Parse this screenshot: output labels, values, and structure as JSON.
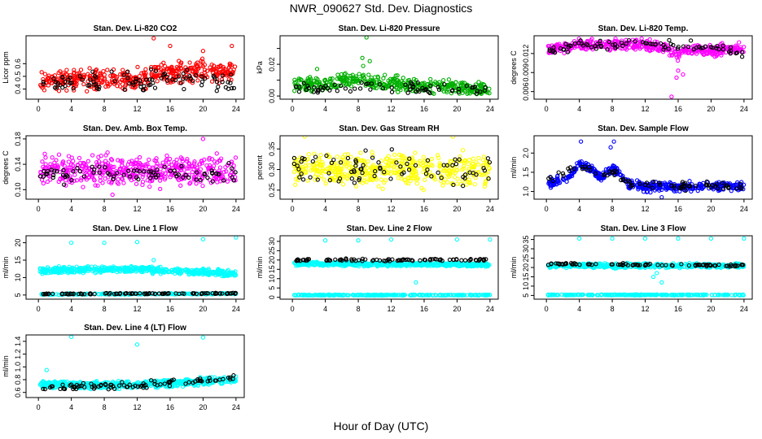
{
  "title": "NWR_090627  Std. Dev. Diagnostics",
  "xlabel": "Hour of Day (UTC)",
  "chart_data": [
    {
      "type": "scatter",
      "title": "Stan. Dev. Li-820 CO2",
      "ylabel": "Licor ppm",
      "xlim": [
        -1.5,
        25
      ],
      "ylim": [
        0.32,
        0.82
      ],
      "xticks": [
        0,
        4,
        8,
        12,
        16,
        20,
        24
      ],
      "yticks": [
        0.4,
        0.5,
        0.6
      ],
      "ytick_labels": [
        "0.4",
        "0.5",
        "0.6"
      ],
      "series": [
        {
          "color": "#ff0000",
          "n": 420,
          "xr": [
            0.2,
            24
          ],
          "base": [
            [
              0,
              0.47
            ],
            [
              12,
              0.48
            ],
            [
              14,
              0.52
            ],
            [
              20,
              0.55
            ],
            [
              24,
              0.52
            ]
          ],
          "spread": 0.07,
          "outliers": [
            [
              14,
              0.8
            ],
            [
              16,
              0.74
            ],
            [
              23.5,
              0.74
            ],
            [
              20,
              0.7
            ]
          ]
        },
        {
          "color": "#000000",
          "n": 95,
          "xr": [
            0.2,
            24
          ],
          "base": [
            [
              0,
              0.44
            ],
            [
              12,
              0.46
            ],
            [
              20,
              0.49
            ],
            [
              24,
              0.44
            ]
          ],
          "spread": 0.07
        }
      ]
    },
    {
      "type": "scatter",
      "title": "Stan. Dev. Li-820 Pressure",
      "ylabel": "kPa",
      "xlim": [
        -1.5,
        25
      ],
      "ylim": [
        -0.002,
        0.038
      ],
      "xticks": [
        0,
        4,
        8,
        12,
        16,
        20,
        24
      ],
      "yticks": [
        0.0,
        0.01,
        0.02,
        0.03
      ],
      "ytick_labels": [
        "0.00",
        "",
        "0.02",
        ""
      ],
      "series": [
        {
          "color": "#00b000",
          "n": 420,
          "xr": [
            0.2,
            24
          ],
          "base": [
            [
              0,
              0.007
            ],
            [
              4,
              0.007
            ],
            [
              8,
              0.011
            ],
            [
              10,
              0.008
            ],
            [
              24,
              0.004
            ]
          ],
          "spread": 0.004,
          "outliers": [
            [
              9,
              0.037
            ],
            [
              8.5,
              0.024
            ],
            [
              9.4,
              0.022
            ],
            [
              8.6,
              0.019
            ],
            [
              3,
              0.017
            ]
          ]
        },
        {
          "color": "#000000",
          "n": 70,
          "xr": [
            0.2,
            24
          ],
          "base": [
            [
              0,
              0.006
            ],
            [
              24,
              0.004
            ]
          ],
          "spread": 0.003
        }
      ]
    },
    {
      "type": "scatter",
      "title": "Stan. Dev. Li-820 Temp.",
      "ylabel": "degrees C",
      "xlim": [
        -1.5,
        25
      ],
      "ylim": [
        0.0048,
        0.0148
      ],
      "xticks": [
        0,
        4,
        8,
        12,
        16,
        20,
        24
      ],
      "yticks": [
        0.006,
        0.009,
        0.012
      ],
      "ytick_labels": [
        "0.006",
        "0.009",
        "0.012"
      ],
      "series": [
        {
          "color": "#ff00ff",
          "n": 460,
          "xr": [
            0.2,
            24
          ],
          "base": [
            [
              0,
              0.0126
            ],
            [
              4,
              0.0134
            ],
            [
              12,
              0.0133
            ],
            [
              14,
              0.0131
            ],
            [
              16,
              0.0116
            ],
            [
              17,
              0.0126
            ],
            [
              24,
              0.0127
            ]
          ],
          "spread": 0.0008,
          "outliers": [
            [
              15.2,
              0.0052
            ],
            [
              15.8,
              0.0082
            ],
            [
              16,
              0.0093
            ],
            [
              16.6,
              0.0087
            ]
          ]
        },
        {
          "color": "#000000",
          "n": 80,
          "xr": [
            0.2,
            24
          ],
          "base": [
            [
              0,
              0.0123
            ],
            [
              4,
              0.0133
            ],
            [
              12,
              0.0134
            ],
            [
              20,
              0.0132
            ],
            [
              24,
              0.012
            ]
          ],
          "spread": 0.0006
        }
      ]
    },
    {
      "type": "scatter",
      "title": "Stan. Dev. Amb. Box Temp.",
      "ylabel": "degrees C",
      "xlim": [
        -1.5,
        25
      ],
      "ylim": [
        0.085,
        0.185
      ],
      "xticks": [
        0,
        4,
        8,
        12,
        16,
        20,
        24
      ],
      "yticks": [
        0.1,
        0.14,
        0.18
      ],
      "ytick_labels": [
        "0.10",
        "0.14",
        "0.18"
      ],
      "series": [
        {
          "color": "#ff00ff",
          "n": 460,
          "xr": [
            0.2,
            24
          ],
          "base": [
            [
              0,
              0.13
            ],
            [
              24,
              0.13
            ]
          ],
          "spread": 0.02,
          "outliers": [
            [
              20,
              0.18
            ],
            [
              9,
              0.092
            ]
          ]
        },
        {
          "color": "#000000",
          "n": 80,
          "xr": [
            0.2,
            24
          ],
          "base": [
            [
              0,
              0.125
            ],
            [
              24,
              0.125
            ]
          ],
          "spread": 0.013
        }
      ]
    },
    {
      "type": "scatter",
      "title": "Stan. Dev. Gas Stream RH",
      "ylabel": "percent",
      "xlim": [
        -1.5,
        25
      ],
      "ylim": [
        0.228,
        0.382
      ],
      "xticks": [
        0,
        4,
        8,
        12,
        16,
        20,
        24
      ],
      "yticks": [
        0.25,
        0.3,
        0.35
      ],
      "ytick_labels": [
        "0.25",
        "0.30",
        "0.35"
      ],
      "series": [
        {
          "color": "#ffff00",
          "n": 460,
          "xr": [
            0.2,
            24
          ],
          "base": [
            [
              0,
              0.3
            ],
            [
              24,
              0.3
            ]
          ],
          "spread": 0.035,
          "outliers": [
            [
              1.5,
              0.38
            ],
            [
              19.5,
              0.38
            ]
          ]
        },
        {
          "color": "#000000",
          "n": 80,
          "xr": [
            0.2,
            24
          ],
          "base": [
            [
              0,
              0.3
            ],
            [
              24,
              0.3
            ]
          ],
          "spread": 0.035
        }
      ]
    },
    {
      "type": "scatter",
      "title": "Stan. Dev. Sample Flow",
      "ylabel": "ml/min",
      "xlim": [
        -1.5,
        25
      ],
      "ylim": [
        0.8,
        2.45
      ],
      "xticks": [
        0,
        4,
        8,
        12,
        16,
        20,
        24
      ],
      "yticks": [
        1.0,
        1.5,
        2.0
      ],
      "ytick_labels": [
        "1.0",
        "1.5",
        "2.0"
      ],
      "series": [
        {
          "color": "#0000ff",
          "n": 460,
          "xr": [
            0.2,
            24
          ],
          "base": [
            [
              0,
              1.22
            ],
            [
              2.5,
              1.3
            ],
            [
              4,
              1.72
            ],
            [
              5.5,
              1.6
            ],
            [
              6.5,
              1.35
            ],
            [
              8,
              1.6
            ],
            [
              9,
              1.45
            ],
            [
              10,
              1.2
            ],
            [
              12,
              1.12
            ],
            [
              24,
              1.14
            ]
          ],
          "spread": 0.1,
          "outliers": [
            [
              4.2,
              2.3
            ],
            [
              8.2,
              2.3
            ],
            [
              7.8,
              2.15
            ],
            [
              14,
              0.85
            ]
          ]
        },
        {
          "color": "#000000",
          "n": 80,
          "xr": [
            0.2,
            24
          ],
          "base": [
            [
              0,
              1.25
            ],
            [
              4,
              1.7
            ],
            [
              6,
              1.45
            ],
            [
              8,
              1.5
            ],
            [
              10,
              1.2
            ],
            [
              24,
              1.12
            ]
          ],
          "spread": 0.09
        }
      ]
    },
    {
      "type": "scatter",
      "title": "Stan. Dev. Line 1 Flow",
      "ylabel": "ml/min",
      "xlim": [
        -1.5,
        25
      ],
      "ylim": [
        3.8,
        22
      ],
      "xticks": [
        0,
        4,
        8,
        12,
        16,
        20,
        24
      ],
      "yticks": [
        5,
        10,
        15,
        20
      ],
      "ytick_labels": [
        "5",
        "10",
        "15",
        "20"
      ],
      "series": [
        {
          "color": "#00ffff",
          "n": 520,
          "xr": [
            0.2,
            24
          ],
          "base": [
            [
              0,
              12
            ],
            [
              12,
              12.5
            ],
            [
              24,
              11
            ]
          ],
          "spread": 0.8,
          "outliers": [
            [
              4,
              20
            ],
            [
              8,
              20
            ],
            [
              12,
              20.2
            ],
            [
              20,
              21
            ],
            [
              24,
              21.5
            ],
            [
              14,
              15
            ]
          ]
        },
        {
          "color": "#00ffff",
          "n": 240,
          "xr": [
            0.2,
            24
          ],
          "base": [
            [
              0,
              5.2
            ],
            [
              24,
              5.4
            ]
          ],
          "spread": 0.15
        },
        {
          "color": "#000000",
          "n": 100,
          "xr": [
            0.2,
            24
          ],
          "base": [
            [
              0,
              5.3
            ],
            [
              24,
              5.5
            ]
          ],
          "spread": 0.15
        }
      ]
    },
    {
      "type": "scatter",
      "title": "Stan. Dev. Line 2 Flow",
      "ylabel": "ml/min",
      "xlim": [
        -1.5,
        25
      ],
      "ylim": [
        -1,
        33
      ],
      "xticks": [
        0,
        4,
        8,
        12,
        16,
        20,
        24
      ],
      "yticks": [
        0,
        5,
        10,
        15,
        20,
        25,
        30
      ],
      "ytick_labels": [
        "0",
        "5",
        "10",
        "15",
        "20",
        "25",
        "30"
      ],
      "series": [
        {
          "color": "#00ffff",
          "n": 520,
          "xr": [
            0.2,
            24
          ],
          "base": [
            [
              0,
              18
            ],
            [
              24,
              17.5
            ]
          ],
          "spread": 0.9,
          "outliers": [
            [
              4,
              30.5
            ],
            [
              8,
              30.5
            ],
            [
              12,
              31
            ],
            [
              20,
              31
            ],
            [
              24,
              31
            ],
            [
              15,
              8
            ]
          ]
        },
        {
          "color": "#00ffff",
          "n": 240,
          "xr": [
            0.2,
            24
          ],
          "base": [
            [
              0,
              1.2
            ],
            [
              24,
              1.2
            ]
          ],
          "spread": 0.2
        },
        {
          "color": "#000000",
          "n": 90,
          "xr": [
            0.2,
            24
          ],
          "base": [
            [
              0,
              20
            ],
            [
              24,
              20
            ]
          ],
          "spread": 0.6
        }
      ]
    },
    {
      "type": "scatter",
      "title": "Stan. Dev. Line 3 Flow",
      "ylabel": "ml/min",
      "xlim": [
        -1.5,
        25
      ],
      "ylim": [
        3,
        37
      ],
      "xticks": [
        0,
        4,
        8,
        12,
        16,
        20,
        24
      ],
      "yticks": [
        5,
        10,
        15,
        20,
        25,
        30,
        35
      ],
      "ytick_labels": [
        "5",
        "10",
        "15",
        "20",
        "25",
        "30",
        "35"
      ],
      "series": [
        {
          "color": "#00ffff",
          "n": 520,
          "xr": [
            0.2,
            24
          ],
          "base": [
            [
              0,
              21
            ],
            [
              24,
              21
            ]
          ],
          "spread": 1.0,
          "outliers": [
            [
              4,
              35.5
            ],
            [
              8,
              35.5
            ],
            [
              12,
              35.5
            ],
            [
              16,
              35.5
            ],
            [
              20,
              35.5
            ],
            [
              24,
              35.5
            ],
            [
              13,
              15
            ],
            [
              14,
              12
            ],
            [
              13.4,
              17
            ]
          ]
        },
        {
          "color": "#00ffff",
          "n": 240,
          "xr": [
            0.2,
            24
          ],
          "base": [
            [
              0,
              5.3
            ],
            [
              24,
              5.3
            ]
          ],
          "spread": 0.2
        },
        {
          "color": "#000000",
          "n": 90,
          "xr": [
            0.2,
            24
          ],
          "base": [
            [
              0,
              22
            ],
            [
              24,
              21
            ]
          ],
          "spread": 0.5
        }
      ]
    },
    {
      "type": "scatter",
      "title": "Stan. Dev. Line 4 (LT) Flow",
      "ylabel": "ml/min",
      "xlim": [
        -1.5,
        25
      ],
      "ylim": [
        0.52,
        1.5
      ],
      "xticks": [
        0,
        4,
        8,
        12,
        16,
        20,
        24
      ],
      "yticks": [
        0.6,
        0.8,
        1.0,
        1.2,
        1.4
      ],
      "ytick_labels": [
        "0.6",
        "0.8",
        "1.0",
        "1.2",
        "1.4"
      ],
      "series": [
        {
          "color": "#00ffff",
          "n": 520,
          "xr": [
            0.2,
            24
          ],
          "base": [
            [
              0,
              0.72
            ],
            [
              12,
              0.72
            ],
            [
              24,
              0.8
            ]
          ],
          "spread": 0.05,
          "outliers": [
            [
              4,
              1.47
            ],
            [
              12,
              1.35
            ],
            [
              20,
              1.46
            ],
            [
              1,
              0.95
            ]
          ]
        },
        {
          "color": "#000000",
          "n": 90,
          "xr": [
            0.2,
            24
          ],
          "base": [
            [
              0,
              0.68
            ],
            [
              12,
              0.7
            ],
            [
              24,
              0.85
            ]
          ],
          "spread": 0.05
        }
      ]
    }
  ]
}
